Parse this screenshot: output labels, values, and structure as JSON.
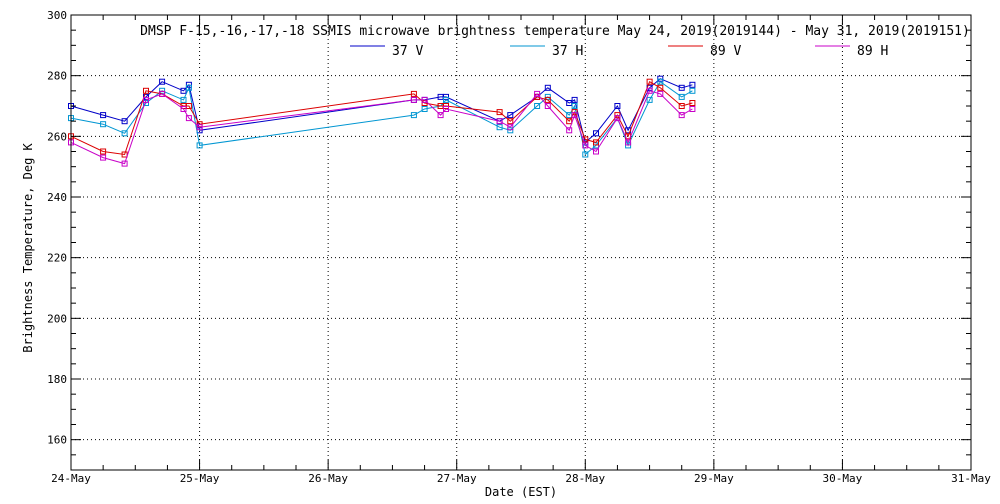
{
  "chart_data": {
    "type": "line",
    "title": "DMSP F-15,-16,-17,-18 SSMIS microwave brightness temperature May 24, 2019(2019144) - May 31, 2019(2019151)",
    "xlabel": "Date (EST)",
    "ylabel": "Brightness Temperature, Deg K",
    "xlim": [
      "2019-05-24",
      "2019-05-31"
    ],
    "ylim": [
      150,
      300
    ],
    "x_tick_labels": [
      "24-May",
      "25-May",
      "26-May",
      "27-May",
      "28-May",
      "29-May",
      "30-May",
      "31-May"
    ],
    "y_tick_labels": [
      "160",
      "180",
      "200",
      "220",
      "240",
      "260",
      "280",
      "300"
    ],
    "grid": true,
    "legend_position": "top",
    "series": [
      {
        "name": "37 V",
        "color": "#0000c8",
        "points": [
          [
            "2019-05-24 00:00",
            270
          ],
          [
            "2019-05-24 06:00",
            267
          ],
          [
            "2019-05-24 10:00",
            265
          ],
          [
            "2019-05-24 14:00",
            273
          ],
          [
            "2019-05-24 17:00",
            278
          ],
          [
            "2019-05-24 21:00",
            275
          ],
          [
            "2019-05-24 22:00",
            277
          ],
          [
            "2019-05-25 00:00",
            262
          ],
          [
            "2019-05-26 16:00",
            272
          ],
          [
            "2019-05-26 18:00",
            272
          ],
          [
            "2019-05-26 21:00",
            273
          ],
          [
            "2019-05-26 22:00",
            273
          ],
          [
            "2019-05-27 08:00",
            265
          ],
          [
            "2019-05-27 10:00",
            267
          ],
          [
            "2019-05-27 15:00",
            273
          ],
          [
            "2019-05-27 17:00",
            276
          ],
          [
            "2019-05-27 21:00",
            271
          ],
          [
            "2019-05-27 22:00",
            272
          ],
          [
            "2019-05-28 00:00",
            258
          ],
          [
            "2019-05-28 02:00",
            261
          ],
          [
            "2019-05-28 06:00",
            270
          ],
          [
            "2019-05-28 08:00",
            262
          ],
          [
            "2019-05-28 12:00",
            276
          ],
          [
            "2019-05-28 14:00",
            279
          ],
          [
            "2019-05-28 18:00",
            276
          ],
          [
            "2019-05-28 20:00",
            277
          ]
        ]
      },
      {
        "name": "37 H",
        "color": "#0096d2",
        "points": [
          [
            "2019-05-24 00:00",
            266
          ],
          [
            "2019-05-24 06:00",
            264
          ],
          [
            "2019-05-24 10:00",
            261
          ],
          [
            "2019-05-24 14:00",
            271
          ],
          [
            "2019-05-24 17:00",
            275
          ],
          [
            "2019-05-24 21:00",
            272
          ],
          [
            "2019-05-24 22:00",
            276
          ],
          [
            "2019-05-25 00:00",
            257
          ],
          [
            "2019-05-26 16:00",
            267
          ],
          [
            "2019-05-26 18:00",
            269
          ],
          [
            "2019-05-26 21:00",
            270
          ],
          [
            "2019-05-26 22:00",
            272
          ],
          [
            "2019-05-27 08:00",
            263
          ],
          [
            "2019-05-27 10:00",
            262
          ],
          [
            "2019-05-27 15:00",
            270
          ],
          [
            "2019-05-27 17:00",
            273
          ],
          [
            "2019-05-27 21:00",
            267
          ],
          [
            "2019-05-27 22:00",
            270
          ],
          [
            "2019-05-28 00:00",
            254
          ],
          [
            "2019-05-28 02:00",
            257
          ],
          [
            "2019-05-28 06:00",
            266
          ],
          [
            "2019-05-28 08:00",
            257
          ],
          [
            "2019-05-28 12:00",
            272
          ],
          [
            "2019-05-28 14:00",
            278
          ],
          [
            "2019-05-28 18:00",
            273
          ],
          [
            "2019-05-28 20:00",
            275
          ]
        ]
      },
      {
        "name": "89 V",
        "color": "#dc0000",
        "points": [
          [
            "2019-05-24 00:00",
            260
          ],
          [
            "2019-05-24 06:00",
            255
          ],
          [
            "2019-05-24 10:00",
            254
          ],
          [
            "2019-05-24 14:00",
            275
          ],
          [
            "2019-05-24 17:00",
            274
          ],
          [
            "2019-05-24 21:00",
            270
          ],
          [
            "2019-05-24 22:00",
            270
          ],
          [
            "2019-05-25 00:00",
            264
          ],
          [
            "2019-05-26 16:00",
            274
          ],
          [
            "2019-05-26 18:00",
            271
          ],
          [
            "2019-05-26 21:00",
            270
          ],
          [
            "2019-05-26 22:00",
            270
          ],
          [
            "2019-05-27 08:00",
            268
          ],
          [
            "2019-05-27 10:00",
            265
          ],
          [
            "2019-05-27 15:00",
            273
          ],
          [
            "2019-05-27 17:00",
            272
          ],
          [
            "2019-05-27 21:00",
            265
          ],
          [
            "2019-05-27 22:00",
            268
          ],
          [
            "2019-05-28 00:00",
            259
          ],
          [
            "2019-05-28 02:00",
            258
          ],
          [
            "2019-05-28 06:00",
            267
          ],
          [
            "2019-05-28 08:00",
            260
          ],
          [
            "2019-05-28 12:00",
            278
          ],
          [
            "2019-05-28 14:00",
            276
          ],
          [
            "2019-05-28 18:00",
            270
          ],
          [
            "2019-05-28 20:00",
            271
          ]
        ]
      },
      {
        "name": "89 H",
        "color": "#c800c8",
        "points": [
          [
            "2019-05-24 00:00",
            258
          ],
          [
            "2019-05-24 06:00",
            253
          ],
          [
            "2019-05-24 10:00",
            251
          ],
          [
            "2019-05-24 14:00",
            272
          ],
          [
            "2019-05-24 17:00",
            274
          ],
          [
            "2019-05-24 21:00",
            269
          ],
          [
            "2019-05-24 22:00",
            266
          ],
          [
            "2019-05-25 00:00",
            263
          ],
          [
            "2019-05-26 16:00",
            272
          ],
          [
            "2019-05-26 18:00",
            272
          ],
          [
            "2019-05-26 21:00",
            267
          ],
          [
            "2019-05-26 22:00",
            269
          ],
          [
            "2019-05-27 08:00",
            265
          ],
          [
            "2019-05-27 10:00",
            263
          ],
          [
            "2019-05-27 15:00",
            274
          ],
          [
            "2019-05-27 17:00",
            270
          ],
          [
            "2019-05-27 21:00",
            262
          ],
          [
            "2019-05-27 22:00",
            267
          ],
          [
            "2019-05-28 00:00",
            257
          ],
          [
            "2019-05-28 02:00",
            255
          ],
          [
            "2019-05-28 06:00",
            266
          ],
          [
            "2019-05-28 08:00",
            258
          ],
          [
            "2019-05-28 12:00",
            275
          ],
          [
            "2019-05-28 14:00",
            274
          ],
          [
            "2019-05-28 18:00",
            267
          ],
          [
            "2019-05-28 20:00",
            269
          ]
        ]
      }
    ]
  }
}
